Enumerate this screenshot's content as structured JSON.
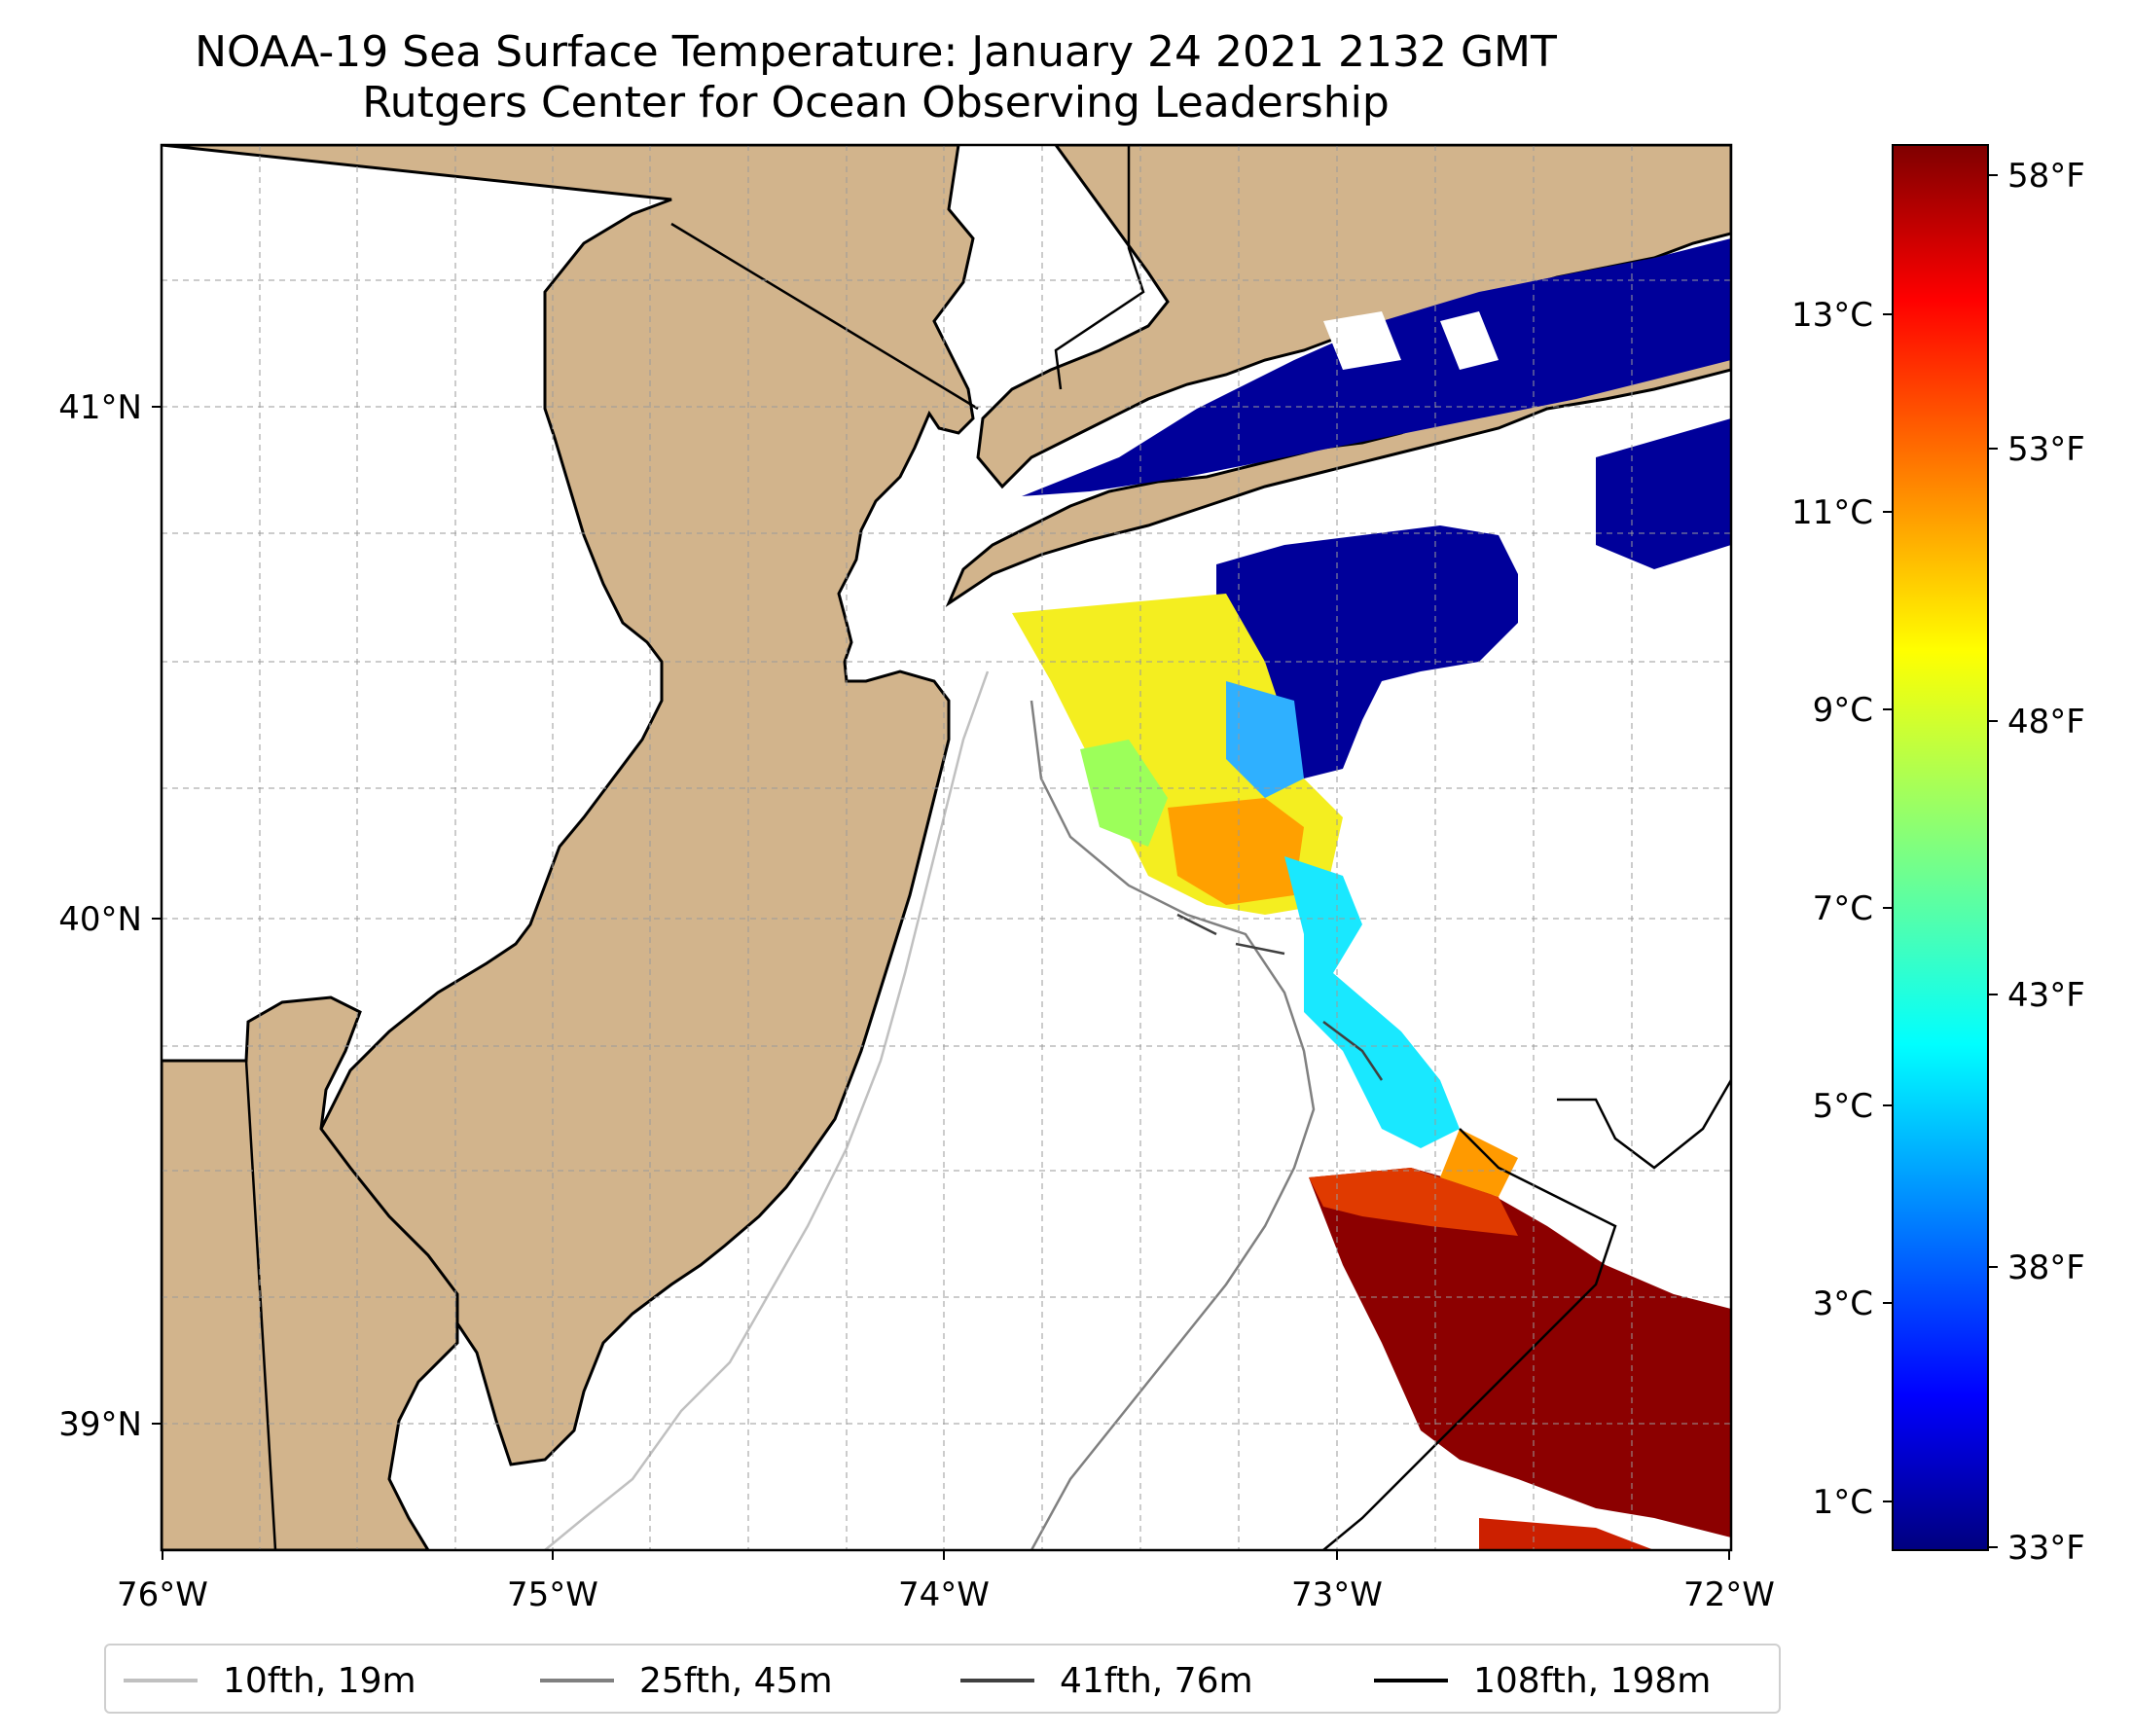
{
  "title": "NOAA-19 Sea Surface Temperature: January 24 2021 2132 GMT",
  "subtitle": "Rutgers Center for Ocean Observing Leadership",
  "map": {
    "lon_range": [
      -76,
      -72
    ],
    "lat_range": [
      38.7,
      41.55
    ],
    "x_ticks": [
      "76°W",
      "75°W",
      "74°W",
      "73°W",
      "72°W"
    ],
    "y_ticks": [
      "41°N",
      "40°N",
      "39°N"
    ],
    "land_color": "#d2b48c",
    "grid": true
  },
  "colorbar": {
    "colormap": "jet",
    "celsius_ticks": [
      "13°C",
      "11°C",
      "9°C",
      "7°C",
      "5°C",
      "3°C",
      "1°C"
    ],
    "fahrenheit_ticks": [
      "58°F",
      "53°F",
      "48°F",
      "43°F",
      "38°F",
      "33°F"
    ]
  },
  "legend": {
    "items": [
      {
        "label": "10fth, 19m",
        "color": "#c0c0c0"
      },
      {
        "label": "25fth, 45m",
        "color": "#808080"
      },
      {
        "label": "41fth, 76m",
        "color": "#404040"
      },
      {
        "label": "108fth, 198m",
        "color": "#000000"
      }
    ]
  }
}
